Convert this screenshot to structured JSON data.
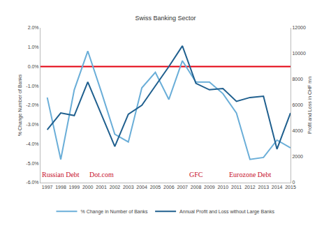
{
  "chart_data": {
    "type": "line",
    "title": "Swiss Banking Sector",
    "y_label": "% Change Number of Banks",
    "y2_label": "Profit and Loss in CHF mn",
    "categories": [
      "1997",
      "1998",
      "1999",
      "2000",
      "2001",
      "2002",
      "2003",
      "2004",
      "2005",
      "2006",
      "2007",
      "2008",
      "2009",
      "2010",
      "2011",
      "2012",
      "2013",
      "2014",
      "2015"
    ],
    "series": [
      {
        "name": "% Change in Number of Banks",
        "color": "#6aaed8",
        "axis": "y",
        "values": [
          -1.6,
          -4.8,
          -1.2,
          0.8,
          -1.3,
          -3.5,
          -3.9,
          -1.1,
          -0.3,
          -1.7,
          0.3,
          -0.8,
          -0.8,
          -1.4,
          -2.4,
          -4.8,
          -4.7,
          -3.8,
          -4.2
        ]
      },
      {
        "name": "Annual Profit and Loss without Large Banks",
        "color": "#1f5f8e",
        "axis": "y2",
        "values": [
          4100,
          5400,
          5200,
          7800,
          5300,
          2800,
          5300,
          6000,
          7500,
          9000,
          10600,
          7700,
          7200,
          7300,
          6300,
          6600,
          6700,
          2600,
          5400
        ]
      }
    ],
    "ylim": [
      -6,
      2
    ],
    "yticks": [
      {
        "value": -6,
        "label": "-6.0%"
      },
      {
        "value": -5,
        "label": "-5.0%"
      },
      {
        "value": -4,
        "label": "-4.0%"
      },
      {
        "value": -3,
        "label": "-3.0%"
      },
      {
        "value": -2,
        "label": "-2.0%"
      },
      {
        "value": -1,
        "label": "-1.0%"
      },
      {
        "value": 0,
        "label": "0.0%"
      },
      {
        "value": 1,
        "label": "1.0%"
      },
      {
        "value": 2,
        "label": "2.0%"
      }
    ],
    "y2lim": [
      0,
      12000
    ],
    "y2ticks": [
      0,
      2000,
      4000,
      6000,
      8000,
      10000,
      12000
    ],
    "reference_lines": [
      {
        "axis": "y",
        "value": 0,
        "color": "#e3000f"
      }
    ],
    "annotations": [
      {
        "text": "Russian Debt",
        "x": "1998",
        "y": -5.6,
        "color": "#c8102e"
      },
      {
        "text": "Dot.com",
        "x": "2001",
        "y": -5.6,
        "color": "#c8102e"
      },
      {
        "text": "GFC",
        "x": "2008",
        "y": -5.6,
        "color": "#c8102e"
      },
      {
        "text": "Eurozone Debt",
        "x": "2012",
        "y": -5.6,
        "color": "#c8102e"
      }
    ],
    "grid": false,
    "legend": "bottom"
  }
}
